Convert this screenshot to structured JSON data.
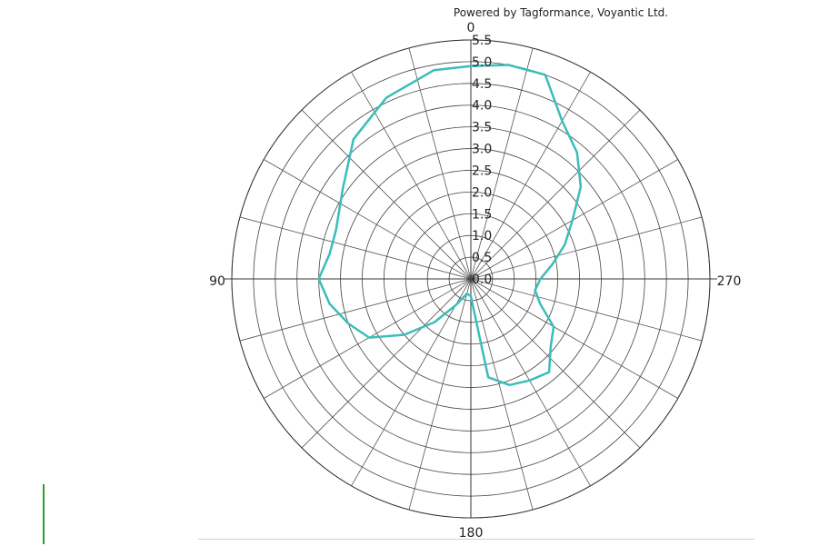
{
  "chart_data": {
    "type": "polar-line",
    "credit": "Powered by Tagformance, Voyantic Ltd.",
    "angle_direction": "counterclockwise",
    "angle_zero": "top",
    "angle_labels": [
      "0",
      "90",
      "180",
      "270"
    ],
    "radial_range": [
      0,
      5.5
    ],
    "radial_ticks": [
      "0.0",
      "0.5",
      "1.0",
      "1.5",
      "2.0",
      "2.5",
      "3.0",
      "3.5",
      "4.0",
      "4.5",
      "5.0",
      "5.5"
    ],
    "grid": true,
    "series": [
      {
        "color": "#3bbdb8",
        "points": [
          {
            "angle": 0,
            "r": 4.9
          },
          {
            "angle": 10,
            "r": 4.88
          },
          {
            "angle": 25,
            "r": 4.6
          },
          {
            "angle": 40,
            "r": 4.2
          },
          {
            "angle": 55,
            "r": 3.6
          },
          {
            "angle": 70,
            "r": 3.3
          },
          {
            "angle": 80,
            "r": 3.3
          },
          {
            "angle": 90,
            "r": 3.5
          },
          {
            "angle": 100,
            "r": 3.3
          },
          {
            "angle": 110,
            "r": 3.0
          },
          {
            "angle": 120,
            "r": 2.7
          },
          {
            "angle": 130,
            "r": 2.0
          },
          {
            "angle": 140,
            "r": 1.3
          },
          {
            "angle": 150,
            "r": 0.7
          },
          {
            "angle": 165,
            "r": 0.35
          },
          {
            "angle": 180,
            "r": 0.4
          },
          {
            "angle": 190,
            "r": 2.3
          },
          {
            "angle": 200,
            "r": 2.6
          },
          {
            "angle": 210,
            "r": 2.7
          },
          {
            "angle": 220,
            "r": 2.8
          },
          {
            "angle": 230,
            "r": 2.4
          },
          {
            "angle": 240,
            "r": 2.2
          },
          {
            "angle": 250,
            "r": 1.7
          },
          {
            "angle": 260,
            "r": 1.5
          },
          {
            "angle": 270,
            "r": 1.6
          },
          {
            "angle": 280,
            "r": 1.9
          },
          {
            "angle": 290,
            "r": 2.3
          },
          {
            "angle": 300,
            "r": 2.7
          },
          {
            "angle": 310,
            "r": 3.3
          },
          {
            "angle": 320,
            "r": 3.8
          },
          {
            "angle": 330,
            "r": 4.2
          },
          {
            "angle": 340,
            "r": 5.0
          },
          {
            "angle": 350,
            "r": 5.0
          },
          {
            "angle": 360,
            "r": 4.9
          }
        ]
      }
    ]
  }
}
